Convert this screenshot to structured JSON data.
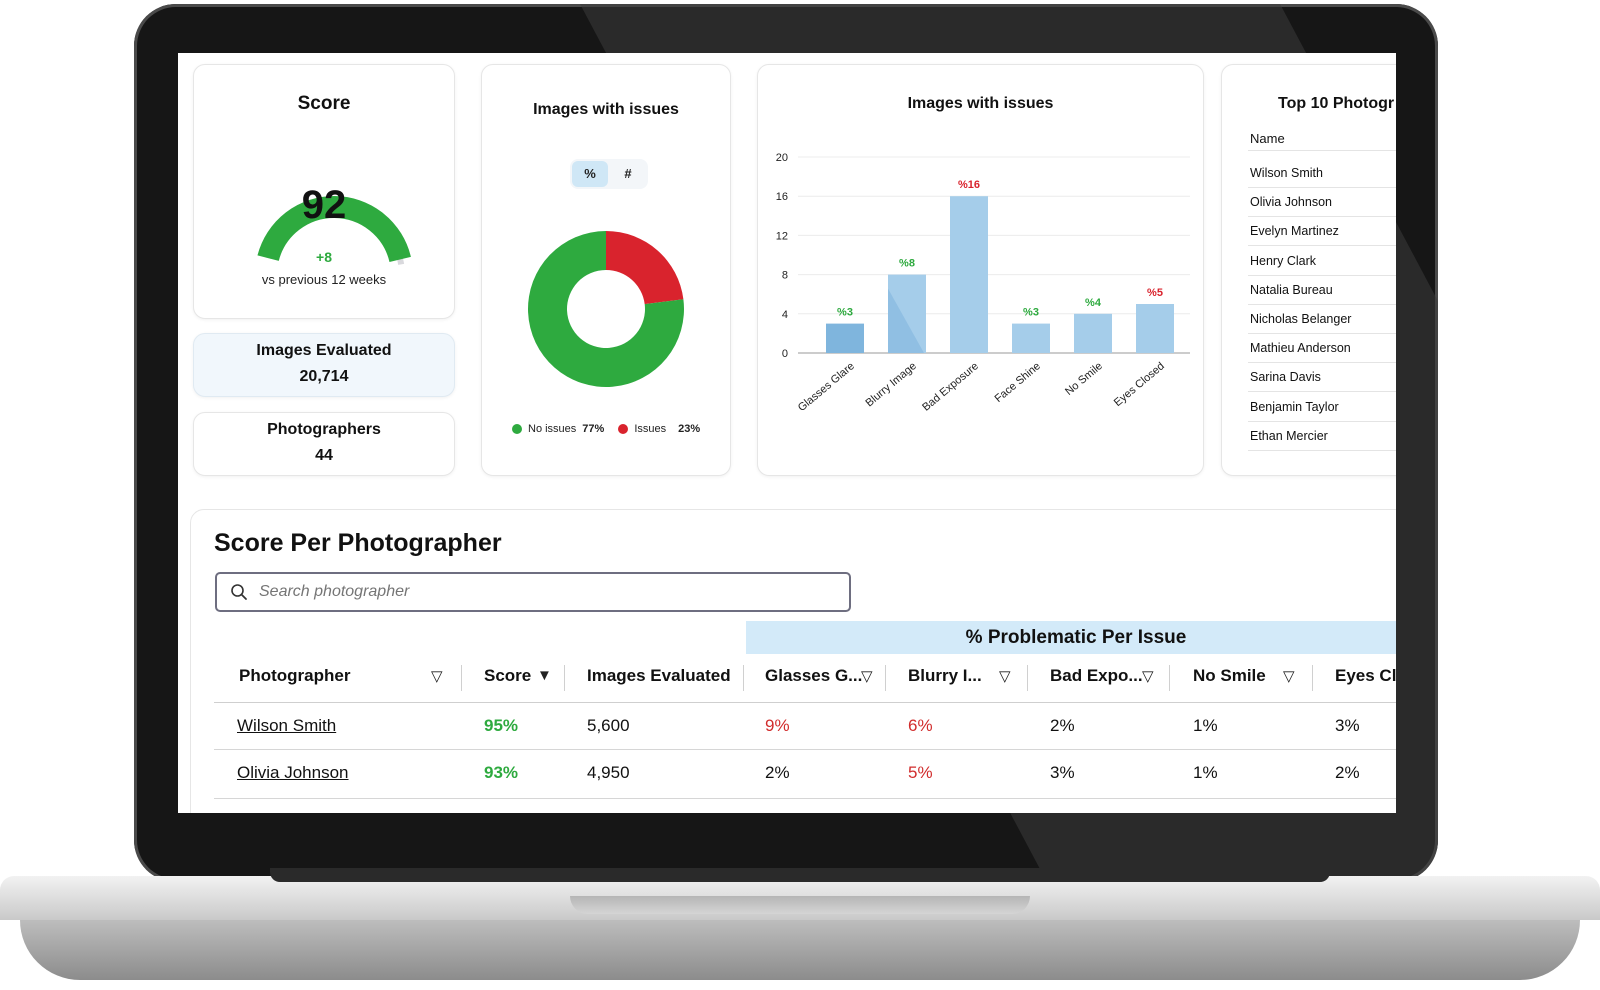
{
  "score": {
    "title": "Score",
    "value": "92",
    "delta": "+8",
    "caption": "vs previous 12 weeks",
    "gauge_fraction": 0.92
  },
  "images_evaluated": {
    "title": "Images Evaluated",
    "value": "20,714"
  },
  "photographers": {
    "title": "Photographers",
    "value": "44"
  },
  "donut": {
    "title": "Images with issues",
    "toggle_pct": "%",
    "toggle_num": "#",
    "no_issues_label": "No issues",
    "no_issues_value": "77%",
    "issues_label": "Issues",
    "issues_value": "23%"
  },
  "bar_title": "Images with issues",
  "top10": {
    "title": "Top 10 Photogr",
    "col_name": "Name",
    "names": [
      "Wilson Smith",
      "Olivia Johnson",
      "Evelyn Martinez",
      "Henry Clark",
      "Natalia Bureau",
      "Nicholas Belanger",
      "Mathieu Anderson",
      "Sarina Davis",
      "Benjamin Taylor",
      "Ethan Mercier"
    ]
  },
  "table": {
    "title": "Score Per Photographer",
    "search_placeholder": "Search photographer",
    "group_header": "% Problematic Per Issue",
    "headers": [
      "Photographer",
      "Score",
      "Images Evaluated",
      "Glasses G...",
      "Blurry I...",
      "Bad Expo...",
      "No Smile",
      "Eyes Cl"
    ],
    "rows": [
      {
        "name": "Wilson Smith",
        "score": "95%",
        "images": "5,600",
        "glasses": "9%",
        "blurry": "6%",
        "bad": "2%",
        "nosmile": "1%",
        "eyes": "3%"
      },
      {
        "name": "Olivia Johnson",
        "score": "93%",
        "images": "4,950",
        "glasses": "2%",
        "blurry": "5%",
        "bad": "3%",
        "nosmile": "1%",
        "eyes": "2%"
      }
    ]
  },
  "colors": {
    "green": "#2eaa3f",
    "red": "#d9232d",
    "bar": "#a5cdea",
    "bar_dark": "#7fb5dd",
    "gauge_track": "#d9d9dd"
  },
  "chart_data": [
    {
      "type": "pie",
      "title": "Images with issues",
      "categories": [
        "No issues",
        "Issues"
      ],
      "values": [
        77,
        23
      ]
    },
    {
      "type": "bar",
      "title": "Images with issues",
      "categories": [
        "Glasses Glare",
        "Blurry Image",
        "Bad Exposure",
        "Face Shine",
        "No Smile",
        "Eyes Closed"
      ],
      "values": [
        3,
        8,
        16,
        3,
        4,
        5
      ],
      "labels": [
        "%3",
        "%8",
        "%16",
        "%3",
        "%4",
        "%5"
      ],
      "label_colors": [
        "green",
        "green",
        "red",
        "green",
        "green",
        "red"
      ],
      "ylim": [
        0,
        20
      ],
      "yticks": [
        0,
        4,
        8,
        12,
        16,
        20
      ],
      "grid": true
    }
  ]
}
